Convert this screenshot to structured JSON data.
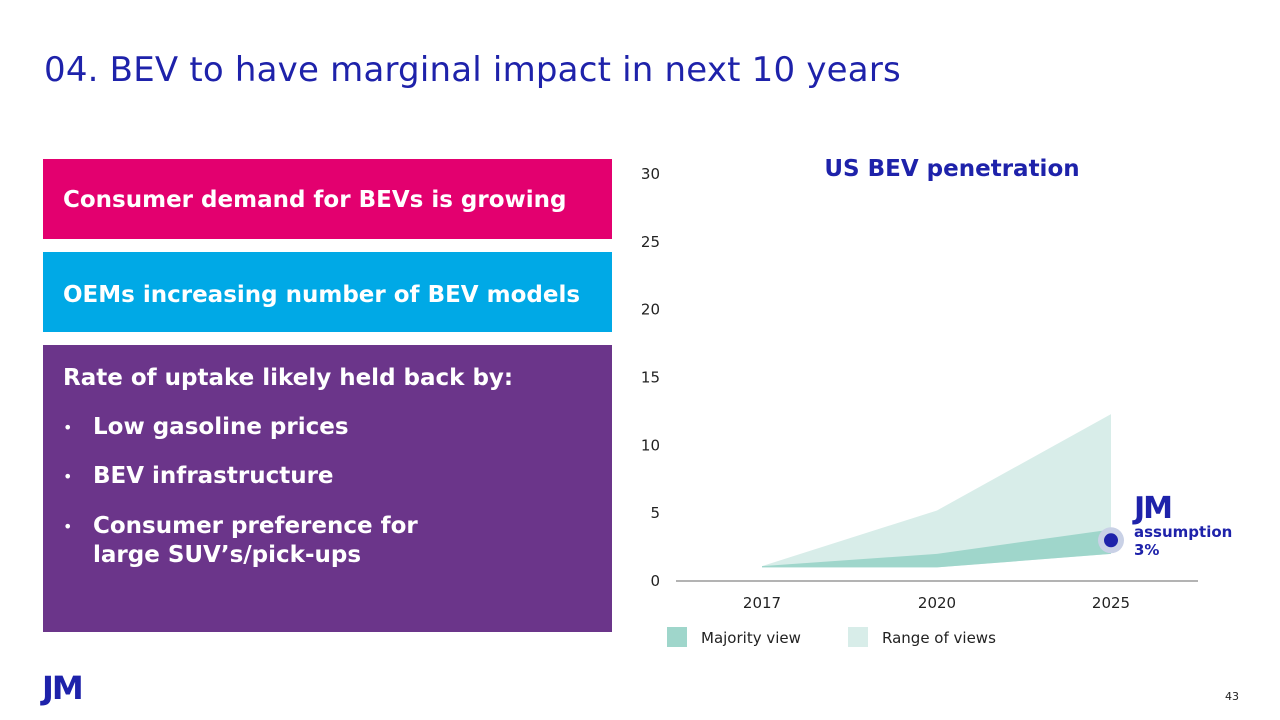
{
  "slide": {
    "title": "04. BEV to have marginal impact in next 10 years",
    "page_number": "43",
    "footer_logo": "JM"
  },
  "boxes": {
    "demand": {
      "label": "Consumer demand for BEVs is growing",
      "color": "#e3006f"
    },
    "oems": {
      "label": "OEMs increasing number of BEV models",
      "color": "#00a9e6"
    },
    "rate": {
      "label": "Rate of uptake likely held back by:",
      "color": "#6b358a",
      "bullet_glyph": "•",
      "bullets": [
        "Low gasoline prices",
        "BEV infrastructure",
        "Consumer preference for\nlarge SUV’s/pick-ups"
      ]
    }
  },
  "colors": {
    "title": "#1e22aa",
    "majority": "#9fd6cb",
    "range": "#d8ede9",
    "marker": "#1e22aa",
    "marker_halo": "#c9d1e6"
  },
  "chart_data": {
    "type": "area",
    "title": "US BEV penetration",
    "xlabel": "",
    "ylabel": "",
    "x": [
      2017,
      2020,
      2025
    ],
    "x_tick_labels": [
      "2017",
      "2020",
      "2025"
    ],
    "ylim": [
      0,
      30
    ],
    "y_ticks": [
      0,
      5,
      10,
      15,
      20,
      25,
      30
    ],
    "grid": false,
    "legend_position": "bottom",
    "series": [
      {
        "name": "Majority view",
        "kind": "band",
        "lower": [
          1.0,
          1.0,
          2.0
        ],
        "upper": [
          1.1,
          2.0,
          3.8
        ]
      },
      {
        "name": "Range of views",
        "kind": "band",
        "lower": [
          1.0,
          1.0,
          2.0
        ],
        "upper": [
          1.1,
          5.2,
          12.3
        ]
      }
    ],
    "annotation": {
      "logo": "JM",
      "label": "assumption",
      "value_label": "3%",
      "x": 2025,
      "y": 3
    }
  }
}
